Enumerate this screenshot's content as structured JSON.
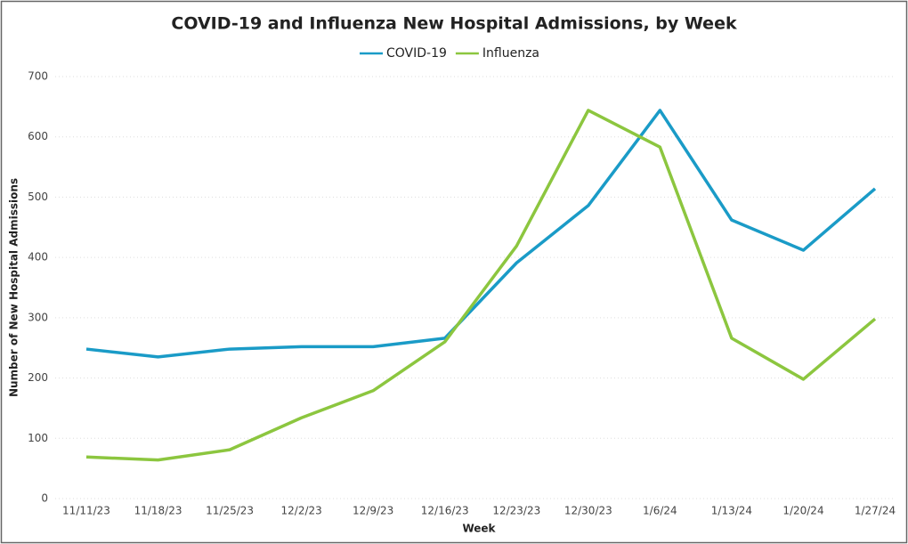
{
  "chart_data": {
    "type": "line",
    "title": "COVID-19 and Influenza New Hospital Admissions, by Week",
    "x_label": "Week",
    "y_label": "Number of New Hospital Admissions",
    "categories": [
      "11/11/23",
      "11/18/23",
      "11/25/23",
      "12/2/23",
      "12/9/23",
      "12/16/23",
      "12/23/23",
      "12/30/23",
      "1/6/24",
      "1/13/24",
      "1/20/24",
      "1/27/24"
    ],
    "series": [
      {
        "name": "COVID-19",
        "color": "#1a9bc7",
        "values": [
          248,
          235,
          248,
          252,
          252,
          266,
          391,
          486,
          644,
          462,
          412,
          514
        ]
      },
      {
        "name": "Influenza",
        "color": "#8cc63f",
        "values": [
          69,
          64,
          81,
          134,
          179,
          260,
          419,
          644,
          583,
          266,
          198,
          298
        ]
      }
    ],
    "ylim": [
      0,
      700
    ],
    "yticks": [
      0,
      100,
      200,
      300,
      400,
      500,
      600,
      700
    ],
    "grid": true
  }
}
